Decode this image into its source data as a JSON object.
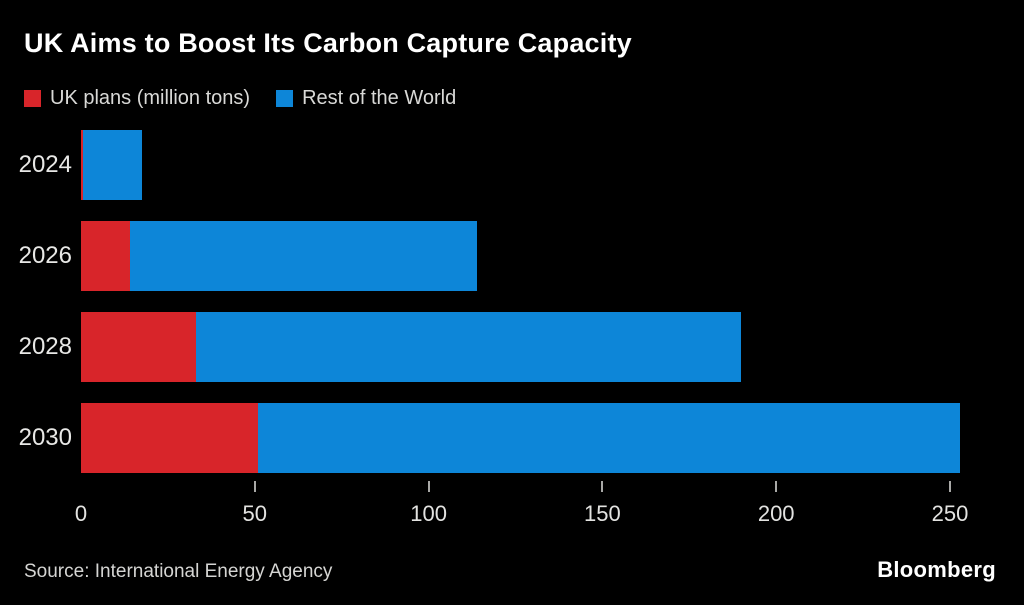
{
  "chart": {
    "title": "UK Aims to Boost Its Carbon Capture Capacity",
    "source": "Source: International Energy Agency",
    "brand": "Bloomberg"
  },
  "chart_data": {
    "type": "bar",
    "orientation": "horizontal",
    "stacked": true,
    "title": "UK Aims to Boost Its Carbon Capture Capacity",
    "categories": [
      "2024",
      "2026",
      "2028",
      "2030"
    ],
    "series": [
      {
        "name": "UK plans (million tons)",
        "color": "#d8252a",
        "values": [
          0.5,
          14,
          33,
          51
        ]
      },
      {
        "name": "Rest of the World",
        "color": "#0d86d8",
        "values": [
          17,
          100,
          157,
          202
        ]
      }
    ],
    "totals": [
      17.5,
      114,
      190,
      253
    ],
    "xlabel": "",
    "ylabel": "",
    "xlim": [
      0,
      250
    ],
    "x_ticks": [
      0,
      50,
      100,
      150,
      200,
      250
    ],
    "legend_position": "top",
    "grid": false,
    "background": "#000000",
    "text_color": "#e8e8e6"
  }
}
